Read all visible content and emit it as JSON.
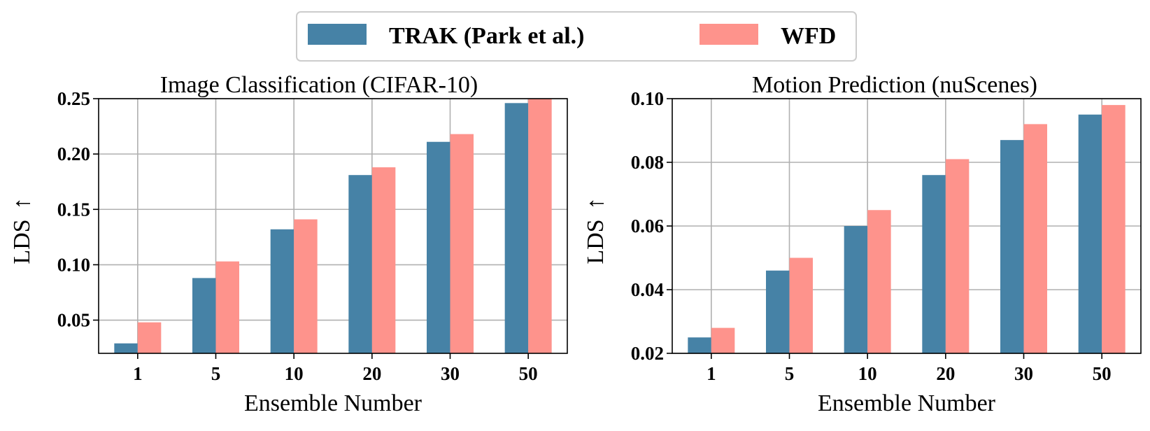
{
  "legend": {
    "items": [
      {
        "label": "TRAK (Park et al.)",
        "color": "#4682a6"
      },
      {
        "label": "WFD",
        "color": "#fe938c"
      }
    ]
  },
  "chart_data": [
    {
      "type": "bar",
      "title": "Image Classification (CIFAR-10)",
      "xlabel": "Ensemble Number",
      "ylabel": "LDS",
      "ylabel_arrow": "↑",
      "categories": [
        "1",
        "5",
        "10",
        "20",
        "30",
        "50"
      ],
      "ylim": [
        0.02,
        0.25
      ],
      "yticks": [
        0.05,
        0.1,
        0.15,
        0.2,
        0.25
      ],
      "ytick_labels": [
        "0.05",
        "0.10",
        "0.15",
        "0.20",
        "0.25"
      ],
      "grid": true,
      "series": [
        {
          "name": "TRAK (Park et al.)",
          "color": "#4682a6",
          "values": [
            0.029,
            0.088,
            0.132,
            0.181,
            0.211,
            0.246
          ]
        },
        {
          "name": "WFD",
          "color": "#fe938c",
          "values": [
            0.048,
            0.103,
            0.141,
            0.188,
            0.218,
            0.25
          ]
        }
      ]
    },
    {
      "type": "bar",
      "title": "Motion Prediction (nuScenes)",
      "xlabel": "Ensemble Number",
      "ylabel": "LDS",
      "ylabel_arrow": "↑",
      "categories": [
        "1",
        "5",
        "10",
        "20",
        "30",
        "50"
      ],
      "ylim": [
        0.02,
        0.1
      ],
      "yticks": [
        0.02,
        0.04,
        0.06,
        0.08,
        0.1
      ],
      "ytick_labels": [
        "0.02",
        "0.04",
        "0.06",
        "0.08",
        "0.10"
      ],
      "grid": true,
      "series": [
        {
          "name": "TRAK (Park et al.)",
          "color": "#4682a6",
          "values": [
            0.025,
            0.046,
            0.06,
            0.076,
            0.087,
            0.095
          ]
        },
        {
          "name": "WFD",
          "color": "#fe938c",
          "values": [
            0.028,
            0.05,
            0.065,
            0.081,
            0.092,
            0.098
          ]
        }
      ]
    }
  ]
}
